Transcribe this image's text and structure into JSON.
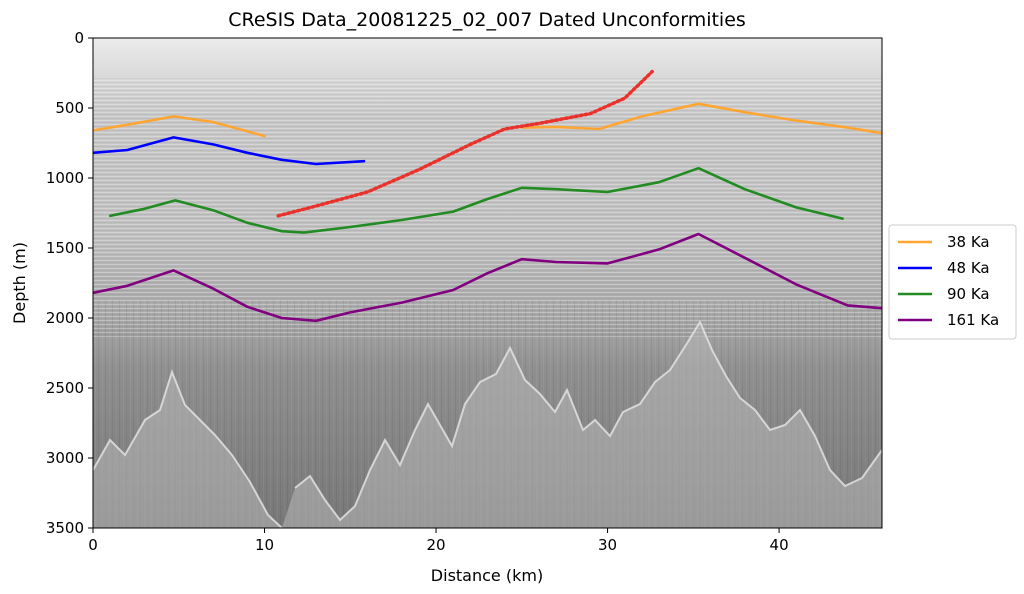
{
  "chart_data": {
    "type": "line",
    "title": "CReSIS Data_20081225_02_007 Dated Unconformities",
    "xlabel": "Distance (km)",
    "ylabel": "Depth (m)",
    "xlim": [
      0,
      46
    ],
    "ylim": [
      0,
      3500
    ],
    "y_inverted": true,
    "background": "radar echogram (grayscale)",
    "grid": false,
    "legend_position": "outside-right",
    "x_ticks": [
      "0",
      "10",
      "20",
      "30",
      "40"
    ],
    "y_ticks": [
      "0",
      "500",
      "1000",
      "1500",
      "2000",
      "2500",
      "3000",
      "3500"
    ],
    "series": [
      {
        "name": "38 Ka",
        "color": "#ffa533",
        "x": [
          0,
          2,
          4.7,
          7,
          10
        ],
        "y": [
          660,
          620,
          560,
          600,
          700
        ]
      },
      {
        "name": "38 Ka (segment 2)",
        "color": "#ffa533",
        "in_legend": false,
        "x": [
          25,
          27,
          29.5,
          32,
          35.3,
          38,
          41,
          44,
          46
        ],
        "y": [
          640,
          635,
          650,
          560,
          470,
          530,
          590,
          640,
          680
        ]
      },
      {
        "name": "48 Ka",
        "color": "#0000ff",
        "x": [
          0,
          2,
          4.7,
          7,
          9,
          11,
          13,
          15.8
        ],
        "y": [
          820,
          800,
          710,
          760,
          820,
          870,
          900,
          880
        ]
      },
      {
        "name": "90 Ka",
        "color": "#228b22",
        "x": [
          1,
          3,
          4.8,
          7,
          9,
          11,
          12.3,
          15,
          18,
          21,
          23,
          25,
          27,
          30,
          33,
          35.3,
          38,
          41,
          43.7
        ],
        "y": [
          1270,
          1220,
          1160,
          1230,
          1320,
          1380,
          1390,
          1350,
          1300,
          1240,
          1150,
          1070,
          1080,
          1100,
          1030,
          930,
          1080,
          1210,
          1290
        ]
      },
      {
        "name": "161 Ka",
        "color": "#800080",
        "x": [
          0,
          2,
          4.7,
          7,
          9,
          11,
          13,
          15,
          18,
          21,
          23,
          25,
          27,
          30,
          33,
          35.3,
          38,
          41,
          44,
          46
        ],
        "y": [
          1820,
          1770,
          1660,
          1790,
          1920,
          2000,
          2020,
          1960,
          1890,
          1800,
          1680,
          1580,
          1600,
          1610,
          1510,
          1400,
          1570,
          1760,
          1910,
          1930
        ]
      },
      {
        "name": "unlabeled dotted red trace",
        "color": "#e8322b",
        "dotted": true,
        "in_legend": false,
        "x": [
          10.8,
          13,
          16,
          19,
          22,
          24,
          26,
          29,
          31,
          32.6
        ],
        "y": [
          1270,
          1200,
          1100,
          940,
          760,
          650,
          610,
          540,
          430,
          240
        ]
      }
    ]
  }
}
